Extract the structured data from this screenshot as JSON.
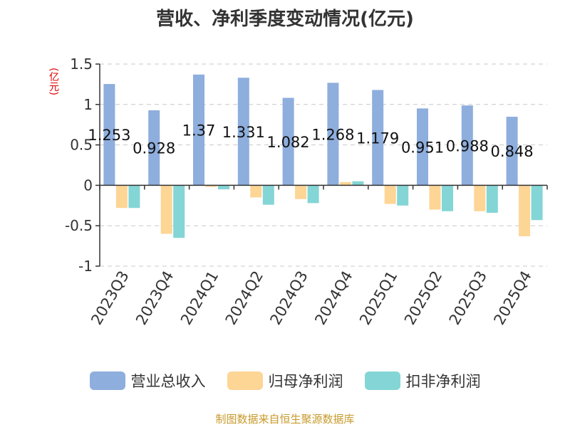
{
  "chart_data": {
    "type": "bar",
    "title": "营收、净利季度变动情况(亿元)",
    "unit_label": "(亿元)",
    "categories": [
      "2023Q3",
      "2023Q4",
      "2024Q1",
      "2024Q2",
      "2024Q3",
      "2024Q4",
      "2025Q1",
      "2025Q2",
      "2025Q3",
      "2025Q4"
    ],
    "series": [
      {
        "name": "营业总收入",
        "color": "#8eaedd",
        "values": [
          1.253,
          0.928,
          1.37,
          1.331,
          1.082,
          1.268,
          1.179,
          0.951,
          0.988,
          0.848
        ]
      },
      {
        "name": "归母净利润",
        "color": "#fdd595",
        "values": [
          -0.28,
          -0.6,
          -0.02,
          -0.15,
          -0.17,
          0.04,
          -0.23,
          -0.3,
          -0.32,
          -0.63
        ]
      },
      {
        "name": "扣非净利润",
        "color": "#84d5d5",
        "values": [
          -0.28,
          -0.65,
          -0.05,
          -0.24,
          -0.22,
          0.05,
          -0.25,
          -0.32,
          -0.34,
          -0.43
        ]
      }
    ],
    "data_labels": [
      "1.253",
      "0.928",
      "1.37",
      "1.331",
      "1.082",
      "1.268",
      "1.179",
      "0.951",
      "0.988",
      "0.848"
    ],
    "ylim": [
      -1,
      1.5
    ],
    "yticks": [
      "1.5",
      "1",
      "0.5",
      "0",
      "-0.5",
      "-1"
    ],
    "grid": true,
    "legend_position": "bottom"
  },
  "source": "制图数据来自恒生聚源数据库"
}
